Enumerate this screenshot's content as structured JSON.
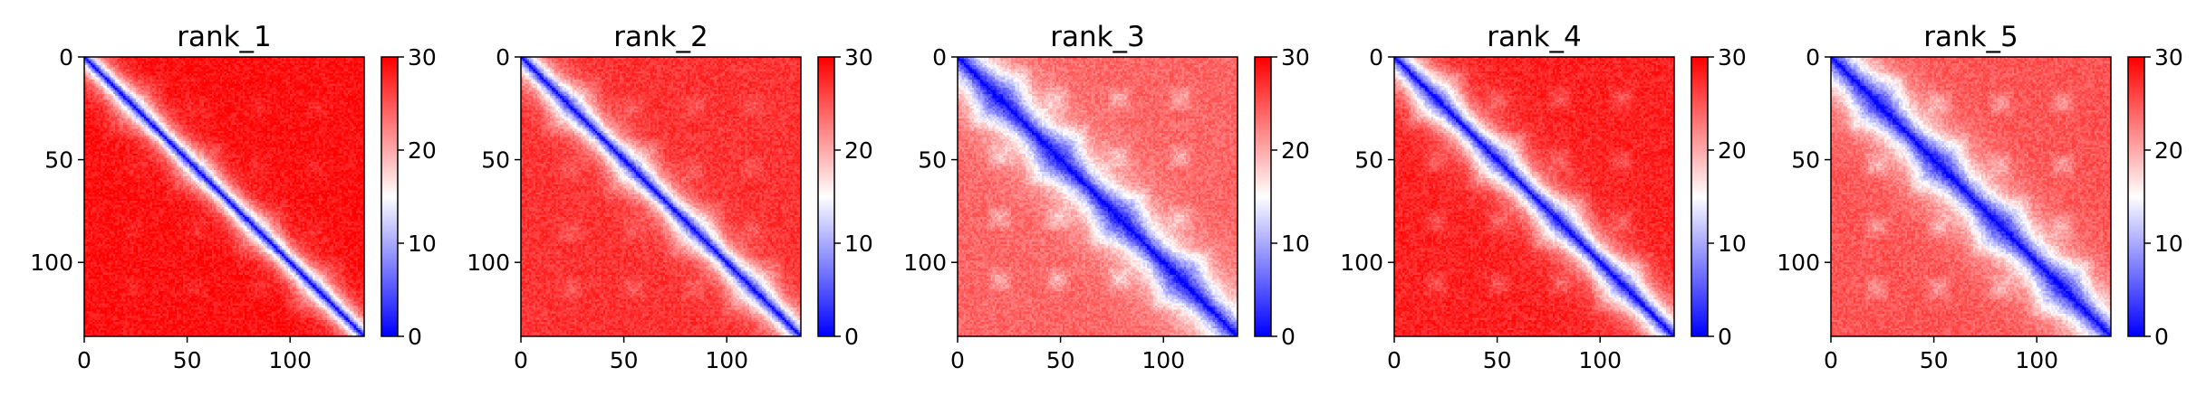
{
  "chart_data": [
    {
      "type": "heatmap",
      "title": "rank_1",
      "xlabel": "",
      "ylabel": "",
      "x_ticks": [
        0,
        50,
        100
      ],
      "y_ticks": [
        0,
        50,
        100
      ],
      "xlim": [
        0,
        136
      ],
      "ylim": [
        136,
        0
      ],
      "matrix_size": 136,
      "colorbar": {
        "min": 0,
        "max": 30,
        "ticks": [
          0,
          10,
          20,
          30
        ],
        "colormap": "bwr"
      },
      "description_values": {
        "diagonal_value": 0,
        "near_diagonal_width": 6,
        "background_value": 29,
        "domain_block_centers": [
          24,
          54,
          84,
          112
        ],
        "domain_strength": 0.15
      },
      "grid": false
    },
    {
      "type": "heatmap",
      "title": "rank_2",
      "xlabel": "",
      "ylabel": "",
      "x_ticks": [
        0,
        50,
        100
      ],
      "y_ticks": [
        0,
        50,
        100
      ],
      "xlim": [
        0,
        136
      ],
      "ylim": [
        136,
        0
      ],
      "matrix_size": 136,
      "colorbar": {
        "min": 0,
        "max": 30,
        "ticks": [
          0,
          10,
          20,
          30
        ],
        "colormap": "bwr"
      },
      "description_values": {
        "diagonal_value": 0,
        "near_diagonal_width": 7,
        "background_value": 27,
        "domain_block_centers": [
          24,
          54,
          84,
          112
        ],
        "domain_strength": 0.25
      },
      "grid": false
    },
    {
      "type": "heatmap",
      "title": "rank_3",
      "xlabel": "",
      "ylabel": "",
      "x_ticks": [
        0,
        50,
        100
      ],
      "y_ticks": [
        0,
        50,
        100
      ],
      "xlim": [
        0,
        136
      ],
      "ylim": [
        136,
        0
      ],
      "matrix_size": 136,
      "colorbar": {
        "min": 0,
        "max": 30,
        "ticks": [
          0,
          10,
          20,
          30
        ],
        "colormap": "bwr"
      },
      "description_values": {
        "diagonal_value": 0,
        "near_diagonal_width": 12,
        "background_value": 24,
        "domain_block_centers": [
          20,
          48,
          78,
          108
        ],
        "domain_strength": 0.55
      },
      "grid": false
    },
    {
      "type": "heatmap",
      "title": "rank_4",
      "xlabel": "",
      "ylabel": "",
      "x_ticks": [
        0,
        50,
        100
      ],
      "y_ticks": [
        0,
        50,
        100
      ],
      "xlim": [
        0,
        136
      ],
      "ylim": [
        136,
        0
      ],
      "matrix_size": 136,
      "colorbar": {
        "min": 0,
        "max": 30,
        "ticks": [
          0,
          10,
          20,
          30
        ],
        "colormap": "bwr"
      },
      "description_values": {
        "diagonal_value": 0,
        "near_diagonal_width": 9,
        "background_value": 28,
        "domain_block_centers": [
          20,
          50,
          80,
          110
        ],
        "domain_strength": 0.35
      },
      "grid": false
    },
    {
      "type": "heatmap",
      "title": "rank_5",
      "xlabel": "",
      "ylabel": "",
      "x_ticks": [
        0,
        50,
        100
      ],
      "y_ticks": [
        0,
        50,
        100
      ],
      "xlim": [
        0,
        136
      ],
      "ylim": [
        136,
        0
      ],
      "matrix_size": 136,
      "colorbar": {
        "min": 0,
        "max": 30,
        "ticks": [
          0,
          10,
          20,
          30
        ],
        "colormap": "bwr"
      },
      "description_values": {
        "diagonal_value": 0,
        "near_diagonal_width": 12,
        "background_value": 25,
        "domain_block_centers": [
          22,
          52,
          82,
          112
        ],
        "domain_strength": 0.5
      },
      "grid": false
    }
  ],
  "colors": {
    "low": "#0000ff",
    "mid": "#ffffff",
    "high": "#ff0000"
  }
}
